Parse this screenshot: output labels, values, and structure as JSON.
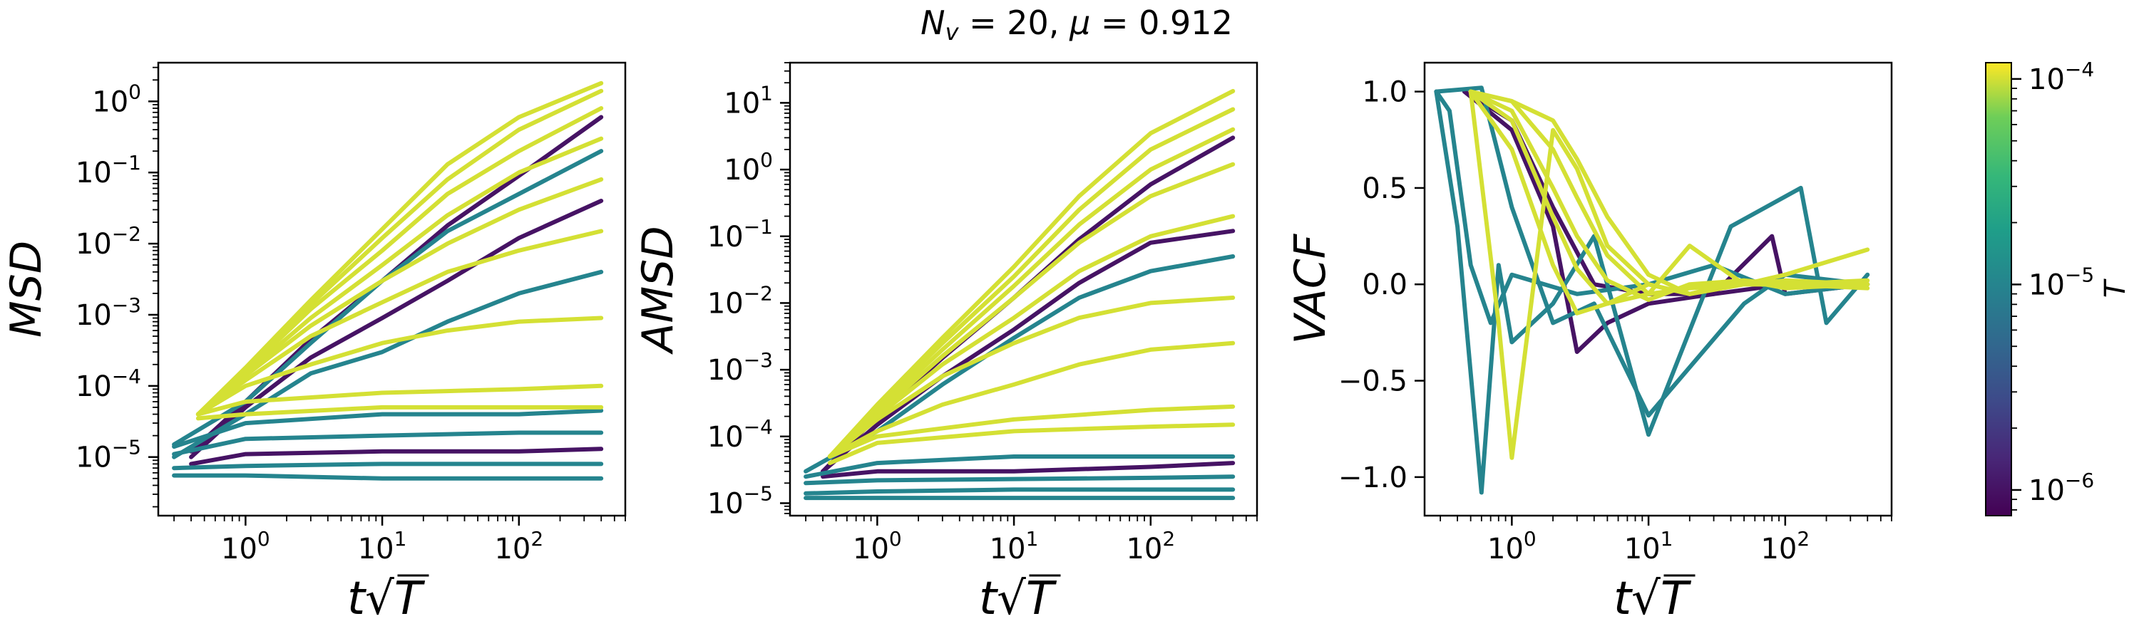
{
  "figure": {
    "title": "N_v = 20, μ = 0.912"
  },
  "chart_data": [
    {
      "type": "line",
      "panel": "msd",
      "ylabel": "MSD",
      "xlabel": "t√T",
      "x_scale": "log",
      "y_scale": "log",
      "xlim": [
        0.23,
        600
      ],
      "ylim": [
        1.5e-06,
        3.5
      ],
      "x_ticks": [
        {
          "value": 1,
          "label": "10^0"
        },
        {
          "value": 10,
          "label": "10^1"
        },
        {
          "value": 100,
          "label": "10^2"
        }
      ],
      "y_ticks": [
        {
          "value": 1e-05,
          "label": "10^-5"
        },
        {
          "value": 0.0001,
          "label": "10^-4"
        },
        {
          "value": 0.001,
          "label": "10^-3"
        },
        {
          "value": 0.01,
          "label": "10^-2"
        },
        {
          "value": 0.1,
          "label": "10^-1"
        },
        {
          "value": 1,
          "label": "10^0"
        }
      ],
      "series": [
        {
          "temperature": 1e-06,
          "x": [
            0.4,
            1,
            3,
            10,
            30,
            100,
            400
          ],
          "y": [
            1e-05,
            5e-05,
            0.00025,
            0.0009,
            0.003,
            0.012,
            0.04
          ]
        },
        {
          "temperature": 1e-06,
          "x": [
            0.4,
            1,
            3,
            10,
            30,
            100,
            400
          ],
          "y": [
            1.2e-05,
            6e-05,
            0.00045,
            0.003,
            0.018,
            0.09,
            0.6
          ]
        },
        {
          "temperature": 1e-06,
          "x": [
            0.4,
            1,
            10,
            100,
            400
          ],
          "y": [
            8e-06,
            1.1e-05,
            1.2e-05,
            1.2e-05,
            1.3e-05
          ]
        },
        {
          "temperature": 1e-05,
          "x": [
            0.3,
            1,
            3,
            10,
            30,
            100,
            400
          ],
          "y": [
            1.5e-05,
            6e-05,
            0.0004,
            0.003,
            0.015,
            0.05,
            0.2
          ]
        },
        {
          "temperature": 1e-05,
          "x": [
            0.3,
            1,
            10,
            100,
            400
          ],
          "y": [
            1.4e-05,
            3e-05,
            4e-05,
            4e-05,
            4.5e-05
          ]
        },
        {
          "temperature": 1e-05,
          "x": [
            0.3,
            1,
            10,
            100,
            400
          ],
          "y": [
            1.1e-05,
            1.8e-05,
            2e-05,
            2.2e-05,
            2.2e-05
          ]
        },
        {
          "temperature": 1e-05,
          "x": [
            0.3,
            1,
            10,
            100,
            400
          ],
          "y": [
            7e-06,
            7.5e-06,
            8e-06,
            8e-06,
            8e-06
          ]
        },
        {
          "temperature": 1e-05,
          "x": [
            0.3,
            1,
            10,
            100,
            400
          ],
          "y": [
            5.5e-06,
            5.5e-06,
            5e-06,
            5e-06,
            5e-06
          ]
        },
        {
          "temperature": 1e-05,
          "x": [
            0.3,
            1,
            3,
            10,
            30,
            100,
            400
          ],
          "y": [
            1e-05,
            4e-05,
            0.00015,
            0.0003,
            0.0008,
            0.002,
            0.004
          ]
        },
        {
          "temperature": 0.0001,
          "x": [
            0.45,
            1,
            3,
            10,
            30,
            100,
            400
          ],
          "y": [
            4e-05,
            0.00018,
            0.0016,
            0.016,
            0.13,
            0.6,
            1.8
          ]
        },
        {
          "temperature": 0.0001,
          "x": [
            0.45,
            1,
            3,
            10,
            30,
            100,
            400
          ],
          "y": [
            4e-05,
            0.00017,
            0.0014,
            0.012,
            0.08,
            0.4,
            1.4
          ]
        },
        {
          "temperature": 0.0001,
          "x": [
            0.45,
            1,
            3,
            10,
            30,
            100,
            400
          ],
          "y": [
            4e-05,
            0.00016,
            0.0012,
            0.008,
            0.05,
            0.2,
            0.8
          ]
        },
        {
          "temperature": 0.0001,
          "x": [
            0.45,
            1,
            3,
            10,
            30,
            100,
            400
          ],
          "y": [
            4e-05,
            0.00015,
            0.0009,
            0.005,
            0.025,
            0.1,
            0.3
          ]
        },
        {
          "temperature": 0.0001,
          "x": [
            0.45,
            1,
            3,
            10,
            30,
            100,
            400
          ],
          "y": [
            4e-05,
            0.00014,
            0.0007,
            0.003,
            0.01,
            0.03,
            0.08
          ]
        },
        {
          "temperature": 0.0001,
          "x": [
            0.45,
            1,
            3,
            10,
            30,
            100,
            400
          ],
          "y": [
            4e-05,
            0.00012,
            0.0005,
            0.0015,
            0.004,
            0.008,
            0.015
          ]
        },
        {
          "temperature": 0.0001,
          "x": [
            0.45,
            1,
            3,
            10,
            30,
            100,
            400
          ],
          "y": [
            4e-05,
            0.0001,
            0.0002,
            0.0004,
            0.0006,
            0.0008,
            0.0009
          ]
        },
        {
          "temperature": 0.0001,
          "x": [
            0.45,
            1,
            10,
            100,
            400
          ],
          "y": [
            4e-05,
            6e-05,
            8e-05,
            9e-05,
            0.0001
          ]
        },
        {
          "temperature": 0.0001,
          "x": [
            0.45,
            1,
            10,
            100,
            400
          ],
          "y": [
            3.5e-05,
            4e-05,
            5e-05,
            5e-05,
            5e-05
          ]
        }
      ]
    },
    {
      "type": "line",
      "panel": "amsd",
      "ylabel": "AMSD",
      "xlabel": "t√T",
      "x_scale": "log",
      "y_scale": "log",
      "xlim": [
        0.23,
        600
      ],
      "ylim": [
        6.5e-06,
        40
      ],
      "x_ticks": [
        {
          "value": 1,
          "label": "10^0"
        },
        {
          "value": 10,
          "label": "10^1"
        },
        {
          "value": 100,
          "label": "10^2"
        }
      ],
      "y_ticks": [
        {
          "value": 1e-05,
          "label": "10^-5"
        },
        {
          "value": 0.0001,
          "label": "10^-4"
        },
        {
          "value": 0.001,
          "label": "10^-3"
        },
        {
          "value": 0.01,
          "label": "10^-2"
        },
        {
          "value": 0.1,
          "label": "10^-1"
        },
        {
          "value": 1,
          "label": "10^0"
        },
        {
          "value": 10,
          "label": "10^1"
        }
      ],
      "series": [
        {
          "temperature": 1e-06,
          "x": [
            0.4,
            1,
            3,
            10,
            30,
            100,
            400
          ],
          "y": [
            3e-05,
            0.0002,
            0.0015,
            0.012,
            0.09,
            0.6,
            3
          ]
        },
        {
          "temperature": 1e-06,
          "x": [
            0.4,
            1,
            3,
            10,
            30,
            100,
            400
          ],
          "y": [
            3e-05,
            0.00015,
            0.0008,
            0.004,
            0.02,
            0.08,
            0.12
          ]
        },
        {
          "temperature": 1e-06,
          "x": [
            0.4,
            1,
            10,
            100,
            400
          ],
          "y": [
            2.5e-05,
            3e-05,
            3e-05,
            3.5e-05,
            4e-05
          ]
        },
        {
          "temperature": 1e-05,
          "x": [
            0.3,
            1,
            3,
            10,
            30,
            100,
            400
          ],
          "y": [
            3e-05,
            0.00012,
            0.0006,
            0.003,
            0.012,
            0.03,
            0.05
          ]
        },
        {
          "temperature": 1e-05,
          "x": [
            0.3,
            1,
            10,
            100,
            400
          ],
          "y": [
            2.5e-05,
            4e-05,
            5e-05,
            5e-05,
            5e-05
          ]
        },
        {
          "temperature": 1e-05,
          "x": [
            0.3,
            1,
            10,
            100,
            400
          ],
          "y": [
            2e-05,
            2.2e-05,
            2.3e-05,
            2.4e-05,
            2.5e-05
          ]
        },
        {
          "temperature": 1e-05,
          "x": [
            0.3,
            1,
            10,
            100,
            400
          ],
          "y": [
            1.4e-05,
            1.5e-05,
            1.6e-05,
            1.6e-05,
            1.6e-05
          ]
        },
        {
          "temperature": 1e-05,
          "x": [
            0.3,
            1,
            10,
            100,
            400
          ],
          "y": [
            1.2e-05,
            1.2e-05,
            1.2e-05,
            1.2e-05,
            1.2e-05
          ]
        },
        {
          "temperature": 0.0001,
          "x": [
            0.45,
            1,
            3,
            10,
            30,
            100,
            400
          ],
          "y": [
            5e-05,
            0.0003,
            0.003,
            0.035,
            0.4,
            3.5,
            15
          ]
        },
        {
          "temperature": 0.0001,
          "x": [
            0.45,
            1,
            3,
            10,
            30,
            100,
            400
          ],
          "y": [
            5e-05,
            0.00028,
            0.0025,
            0.025,
            0.25,
            2,
            8
          ]
        },
        {
          "temperature": 0.0001,
          "x": [
            0.45,
            1,
            3,
            10,
            30,
            100,
            400
          ],
          "y": [
            5e-05,
            0.00025,
            0.002,
            0.018,
            0.15,
            1,
            4
          ]
        },
        {
          "temperature": 0.0001,
          "x": [
            0.45,
            1,
            3,
            10,
            30,
            100,
            400
          ],
          "y": [
            5e-05,
            0.00022,
            0.0016,
            0.012,
            0.08,
            0.4,
            1.2
          ]
        },
        {
          "temperature": 0.0001,
          "x": [
            0.45,
            1,
            3,
            10,
            30,
            100,
            400
          ],
          "y": [
            5e-05,
            0.0002,
            0.0012,
            0.006,
            0.03,
            0.1,
            0.2
          ]
        },
        {
          "temperature": 0.0001,
          "x": [
            0.45,
            1,
            3,
            10,
            30,
            100,
            400
          ],
          "y": [
            5e-05,
            0.00018,
            0.0008,
            0.0025,
            0.006,
            0.01,
            0.012
          ]
        },
        {
          "temperature": 0.0001,
          "x": [
            0.45,
            1,
            3,
            10,
            30,
            100,
            400
          ],
          "y": [
            5e-05,
            0.00012,
            0.0003,
            0.0006,
            0.0012,
            0.002,
            0.0025
          ]
        },
        {
          "temperature": 0.0001,
          "x": [
            0.45,
            1,
            10,
            100,
            400
          ],
          "y": [
            5e-05,
            0.0001,
            0.00018,
            0.00025,
            0.00028
          ]
        },
        {
          "temperature": 0.0001,
          "x": [
            0.45,
            1,
            10,
            100,
            400
          ],
          "y": [
            4e-05,
            8e-05,
            0.00012,
            0.00014,
            0.00015
          ]
        }
      ]
    },
    {
      "type": "line",
      "panel": "vacf",
      "ylabel": "VACF",
      "xlabel": "t√T",
      "x_scale": "log",
      "y_scale": "linear",
      "xlim": [
        0.23,
        600
      ],
      "ylim": [
        -1.2,
        1.15
      ],
      "x_ticks": [
        {
          "value": 1,
          "label": "10^0"
        },
        {
          "value": 10,
          "label": "10^1"
        },
        {
          "value": 100,
          "label": "10^2"
        }
      ],
      "y_ticks": [
        {
          "value": -1.0,
          "label": "−1.0"
        },
        {
          "value": -0.5,
          "label": "−0.5"
        },
        {
          "value": 0.0,
          "label": "0.0"
        },
        {
          "value": 0.5,
          "label": "0.5"
        },
        {
          "value": 1.0,
          "label": "1.0"
        }
      ],
      "series": [
        {
          "temperature": 1e-06,
          "x": [
            0.45,
            1,
            2,
            3,
            5,
            10,
            30,
            80,
            100,
            400
          ],
          "y": [
            1,
            0.8,
            0.3,
            -0.35,
            -0.2,
            -0.1,
            -0.05,
            0.25,
            -0.05,
            0
          ]
        },
        {
          "temperature": 1e-06,
          "x": [
            0.45,
            1,
            2,
            4,
            10,
            30,
            100,
            400
          ],
          "y": [
            1,
            0.85,
            0.4,
            0,
            -0.05,
            -0.05,
            0,
            0
          ]
        },
        {
          "temperature": 1e-05,
          "x": [
            0.28,
            0.4,
            0.6,
            0.8,
            1,
            2,
            4,
            10,
            40,
            130,
            200,
            400
          ],
          "y": [
            1,
            0.3,
            -1.08,
            0.1,
            -0.3,
            -0.1,
            0.25,
            -0.78,
            0.3,
            0.5,
            -0.2,
            0.05
          ]
        },
        {
          "temperature": 1e-05,
          "x": [
            0.28,
            0.35,
            0.5,
            0.7,
            1,
            3,
            10,
            30,
            100,
            400
          ],
          "y": [
            1,
            0.9,
            0.1,
            -0.2,
            0.05,
            -0.05,
            0,
            0.1,
            -0.05,
            0
          ]
        },
        {
          "temperature": 1e-05,
          "x": [
            0.28,
            0.6,
            1,
            2,
            4,
            10,
            50,
            100,
            400
          ],
          "y": [
            1,
            1.02,
            0.4,
            -0.2,
            -0.1,
            -0.68,
            -0.1,
            0.05,
            0
          ]
        },
        {
          "temperature": 0.0001,
          "x": [
            0.5,
            0.8,
            1,
            2,
            3,
            5,
            10,
            20,
            50,
            100,
            400
          ],
          "y": [
            1,
            -0.2,
            -0.9,
            0.8,
            0.6,
            0.2,
            0,
            -0.05,
            0,
            0,
            0
          ]
        },
        {
          "temperature": 0.0001,
          "x": [
            0.5,
            1,
            2,
            3,
            5,
            10,
            20,
            50,
            100,
            400
          ],
          "y": [
            1,
            0.95,
            0.85,
            0.65,
            0.35,
            0.05,
            -0.05,
            0,
            0.02,
            0
          ]
        },
        {
          "temperature": 0.0001,
          "x": [
            0.5,
            1,
            2,
            3,
            5,
            10,
            20,
            50,
            100,
            400
          ],
          "y": [
            1,
            0.95,
            0.7,
            0.45,
            0.15,
            -0.05,
            -0.02,
            0,
            0,
            0.02
          ]
        },
        {
          "temperature": 0.0001,
          "x": [
            0.5,
            1,
            2,
            3,
            5,
            10,
            20,
            50,
            100,
            400
          ],
          "y": [
            1,
            0.9,
            0.5,
            0.25,
            0.02,
            -0.08,
            0,
            0.02,
            -0.02,
            0
          ]
        },
        {
          "temperature": 0.0001,
          "x": [
            0.5,
            1,
            2,
            3,
            5,
            10,
            20,
            50,
            100,
            400
          ],
          "y": [
            1,
            0.85,
            0.35,
            0.08,
            -0.1,
            -0.05,
            0.2,
            0,
            0.05,
            0.18
          ]
        },
        {
          "temperature": 0.0001,
          "x": [
            0.5,
            1,
            2,
            3,
            5,
            10,
            20,
            50,
            100,
            400
          ],
          "y": [
            1,
            0.7,
            0.1,
            -0.15,
            -0.1,
            0,
            -0.05,
            0.02,
            0,
            -0.02
          ]
        }
      ]
    }
  ],
  "colorbar": {
    "label": "T",
    "scale": "log",
    "range": [
      7.5e-07,
      0.00012
    ],
    "ticks": [
      {
        "value": 1e-06,
        "label": "10^-6"
      },
      {
        "value": 1e-05,
        "label": "10^-5"
      },
      {
        "value": 0.0001,
        "label": "10^-4"
      }
    ]
  },
  "colors": {
    "low_T": "#440154",
    "mid_T": "#21918c",
    "high_T": "#dde318",
    "axes": "#000000",
    "background": "#ffffff"
  }
}
